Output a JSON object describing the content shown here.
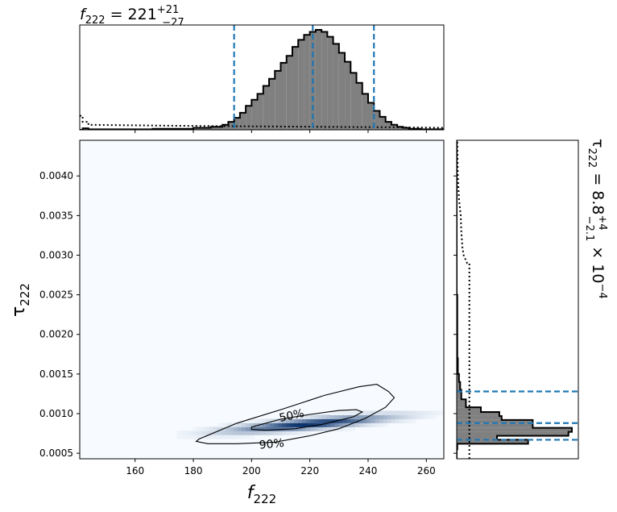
{
  "chart_data": {
    "type": "corner",
    "title_top": {
      "base": "221",
      "sub": "222",
      "sup": "+21",
      "lower": "−27"
    },
    "title_right": {
      "base": "8.8",
      "sub": "222",
      "sup": "+4",
      "lower": "−2.1",
      "exp": "−4"
    },
    "xlabel": "f",
    "xlabel_sub": "222",
    "ylabel": "τ",
    "ylabel_sub": "222",
    "xlim": [
      141,
      266
    ],
    "ylim": [
      0.00043,
      0.00445
    ],
    "x_ticks": [
      160,
      180,
      200,
      220,
      240,
      260
    ],
    "x_tick_labels": [
      "160",
      "180",
      "200",
      "220",
      "240",
      "260"
    ],
    "y_ticks": [
      0.0005,
      0.001,
      0.0015,
      0.002,
      0.0025,
      0.003,
      0.0035,
      0.004
    ],
    "y_tick_labels": [
      "0.0005",
      "0.0010",
      "0.0015",
      "0.0020",
      "0.0025",
      "0.0030",
      "0.0035",
      "0.0040"
    ],
    "f_quantiles": [
      194,
      221,
      242
    ],
    "tau_quantiles": [
      0.00067,
      0.00088,
      0.00128
    ],
    "contour_labels": [
      "50%",
      "90%"
    ],
    "hist_f": {
      "bins": [
        [
          141,
          142,
          0
        ],
        [
          142,
          144,
          0.015
        ],
        [
          144,
          166,
          0.005
        ],
        [
          166,
          180,
          0.01
        ],
        [
          180,
          186,
          0.02
        ],
        [
          186,
          190,
          0.03
        ],
        [
          190,
          192,
          0.05
        ],
        [
          192,
          194,
          0.08
        ],
        [
          194,
          196,
          0.12
        ],
        [
          196,
          198,
          0.17
        ],
        [
          198,
          200,
          0.24
        ],
        [
          200,
          202,
          0.3
        ],
        [
          202,
          204,
          0.36
        ],
        [
          204,
          206,
          0.44
        ],
        [
          206,
          208,
          0.51
        ],
        [
          208,
          210,
          0.59
        ],
        [
          210,
          212,
          0.67
        ],
        [
          212,
          214,
          0.74
        ],
        [
          214,
          216,
          0.83
        ],
        [
          216,
          218,
          0.9
        ],
        [
          218,
          220,
          0.95
        ],
        [
          220,
          222,
          0.98
        ],
        [
          222,
          224,
          1.0
        ],
        [
          224,
          226,
          0.98
        ],
        [
          226,
          228,
          0.93
        ],
        [
          228,
          230,
          0.86
        ],
        [
          230,
          232,
          0.77
        ],
        [
          232,
          234,
          0.68
        ],
        [
          234,
          236,
          0.57
        ],
        [
          236,
          238,
          0.47
        ],
        [
          238,
          240,
          0.36
        ],
        [
          240,
          242,
          0.27
        ],
        [
          242,
          244,
          0.19
        ],
        [
          244,
          246,
          0.13
        ],
        [
          246,
          248,
          0.08
        ],
        [
          248,
          250,
          0.05
        ],
        [
          250,
          252,
          0.03
        ],
        [
          252,
          254,
          0.02
        ],
        [
          254,
          258,
          0.01
        ],
        [
          258,
          266,
          0.005
        ]
      ],
      "prior": [
        [
          141,
          0.14
        ],
        [
          142,
          0.14
        ],
        [
          142,
          0.08
        ],
        [
          144,
          0.08
        ],
        [
          144,
          0.05
        ],
        [
          175,
          0.04
        ],
        [
          200,
          0.035
        ],
        [
          225,
          0.03
        ],
        [
          250,
          0.025
        ],
        [
          266,
          0.02
        ]
      ]
    },
    "hist_tau": {
      "bins": [
        [
          0.00043,
          0.00055,
          0.0
        ],
        [
          0.00055,
          0.00062,
          0.005
        ],
        [
          0.00062,
          0.00067,
          0.62
        ],
        [
          0.00067,
          0.00072,
          0.35
        ],
        [
          0.00072,
          0.00077,
          0.97
        ],
        [
          0.00077,
          0.00082,
          1.0
        ],
        [
          0.00082,
          0.00087,
          0.66
        ],
        [
          0.00087,
          0.00092,
          0.66
        ],
        [
          0.00092,
          0.00097,
          0.39
        ],
        [
          0.00097,
          0.00102,
          0.37
        ],
        [
          0.00102,
          0.00108,
          0.21
        ],
        [
          0.00108,
          0.00118,
          0.08
        ],
        [
          0.00118,
          0.0013,
          0.04
        ],
        [
          0.0013,
          0.0014,
          0.03
        ],
        [
          0.0014,
          0.0015,
          0.02
        ],
        [
          0.0015,
          0.0017,
          0.01
        ],
        [
          0.0017,
          0.0025,
          0.005
        ],
        [
          0.0025,
          0.0045,
          0.0
        ]
      ],
      "prior": [
        [
          0.00043,
          0.11
        ],
        [
          0.0029,
          0.11
        ],
        [
          0.0029,
          0.09
        ],
        [
          0.003,
          0.06
        ],
        [
          0.0031,
          0.05
        ],
        [
          0.0033,
          0.04
        ],
        [
          0.0035,
          0.035
        ],
        [
          0.0037,
          0.02
        ],
        [
          0.004,
          0.01
        ],
        [
          0.00445,
          0.005
        ]
      ]
    },
    "density": {
      "peak": [
        220,
        0.00087
      ],
      "sigma_u": 17,
      "sigma_v": 0.000115,
      "contour_50": [
        [
          200,
          0.00083
        ],
        [
          210,
          0.00093
        ],
        [
          220,
          0.00099
        ],
        [
          230,
          0.00104
        ],
        [
          236,
          0.00105
        ],
        [
          238,
          0.00102
        ],
        [
          235,
          0.00096
        ],
        [
          225,
          0.00087
        ],
        [
          215,
          0.00081
        ],
        [
          205,
          0.00079
        ],
        [
          200,
          0.0008
        ]
      ],
      "contour_90": [
        [
          181,
          0.00065
        ],
        [
          182,
          0.00068
        ],
        [
          195,
          0.00088
        ],
        [
          210,
          0.00105
        ],
        [
          225,
          0.00123
        ],
        [
          237,
          0.00134
        ],
        [
          243,
          0.00137
        ],
        [
          247,
          0.00128
        ],
        [
          249,
          0.0012
        ],
        [
          246,
          0.00108
        ],
        [
          239,
          0.00094
        ],
        [
          230,
          0.00081
        ],
        [
          220,
          0.00072
        ],
        [
          208,
          0.00064
        ],
        [
          195,
          0.00062
        ],
        [
          185,
          0.00062
        ],
        [
          181,
          0.00065
        ]
      ]
    },
    "colors": {
      "hist_fill": "#808080",
      "quantile_line": "#1f77b4",
      "cmap_low": "#f7fbff",
      "cmap_high": "#08306b"
    }
  }
}
